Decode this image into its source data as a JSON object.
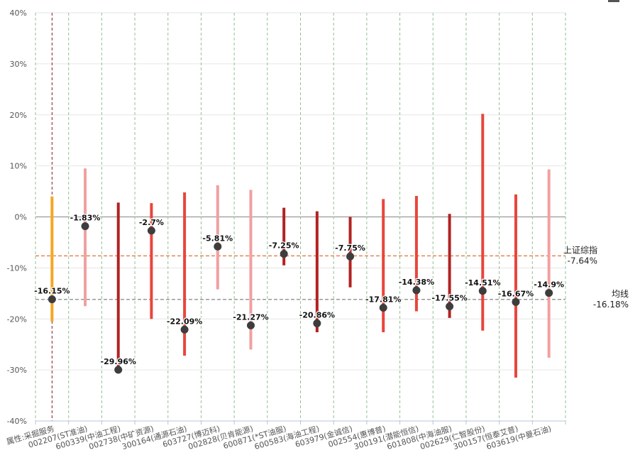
{
  "chart_data": {
    "type": "range-dot",
    "y_tick_labels": [
      "40%",
      "30%",
      "20%",
      "10%",
      "0%",
      "-10%",
      "-20%",
      "-30%",
      "-40%"
    ],
    "ylim": [
      -40,
      40
    ],
    "grid": "horizontal solid; vertical dashed green",
    "categories": [
      "属性:采掘服务",
      "002207(ST准油)",
      "600339(中油工程)",
      "002738(中矿资源)",
      "300164(通源石油)",
      "603727(博迈科)",
      "002828(贝肯能源)",
      "600871(*ST油服)",
      "600583(海油工程)",
      "603979(金诚信)",
      "002554(惠博普)",
      "300191(潜能恒信)",
      "601808(中海油服)",
      "002629(仁智股份)",
      "300157(恒泰艾普)",
      "603619(中曼石油)"
    ],
    "points": [
      {
        "value": -16.15,
        "label": "-16.15%",
        "high": 4.0,
        "low": -20.5,
        "color": "#f5a623",
        "dashed": true
      },
      {
        "value": -1.83,
        "label": "-1.83%",
        "high": 9.5,
        "low": -17.5,
        "color": "#f1a0a0"
      },
      {
        "value": -29.96,
        "label": "-29.96%",
        "high": 2.8,
        "low": -30.0,
        "color": "#b22222"
      },
      {
        "value": -2.7,
        "label": "-2.7%",
        "high": 2.7,
        "low": -20.0,
        "color": "#e8453c"
      },
      {
        "value": -22.09,
        "label": "-22.09%",
        "high": 4.8,
        "low": -27.2,
        "color": "#e8453c"
      },
      {
        "value": -5.81,
        "label": "-5.81%",
        "high": 6.2,
        "low": -14.2,
        "color": "#f1a0a0"
      },
      {
        "value": -21.27,
        "label": "-21.27%",
        "high": 5.3,
        "low": -26.0,
        "color": "#f1a0a0"
      },
      {
        "value": -7.25,
        "label": "-7.25%",
        "high": 1.8,
        "low": -9.5,
        "color": "#b22222"
      },
      {
        "value": -20.86,
        "label": "-20.86%",
        "high": 1.1,
        "low": -22.6,
        "color": "#b22222"
      },
      {
        "value": -7.75,
        "label": "-7.75%",
        "high": 0.0,
        "low": -13.8,
        "color": "#b22222"
      },
      {
        "value": -17.81,
        "label": "-17.81%",
        "high": 3.5,
        "low": -22.6,
        "color": "#e8453c"
      },
      {
        "value": -14.38,
        "label": "-14.38%",
        "high": 4.1,
        "low": -18.5,
        "color": "#e8453c"
      },
      {
        "value": -17.55,
        "label": "-17.55%",
        "high": 0.6,
        "low": -19.8,
        "color": "#b22222"
      },
      {
        "value": -14.51,
        "label": "-14.51%",
        "high": 20.2,
        "low": -22.3,
        "color": "#e8453c"
      },
      {
        "value": -16.67,
        "label": "-16.67%",
        "high": 4.4,
        "low": -31.5,
        "color": "#e8453c"
      },
      {
        "value": -14.9,
        "label": "-14.9%",
        "high": 9.3,
        "low": -27.6,
        "color": "#f1a0a0"
      }
    ],
    "reference_lines": [
      {
        "name": "上证综指",
        "value": -7.64,
        "value_label": "-7.64%",
        "color": "#e0642a"
      },
      {
        "name": "均线",
        "value": -16.18,
        "value_label": "-16.18%",
        "color": "#777777"
      }
    ]
  }
}
